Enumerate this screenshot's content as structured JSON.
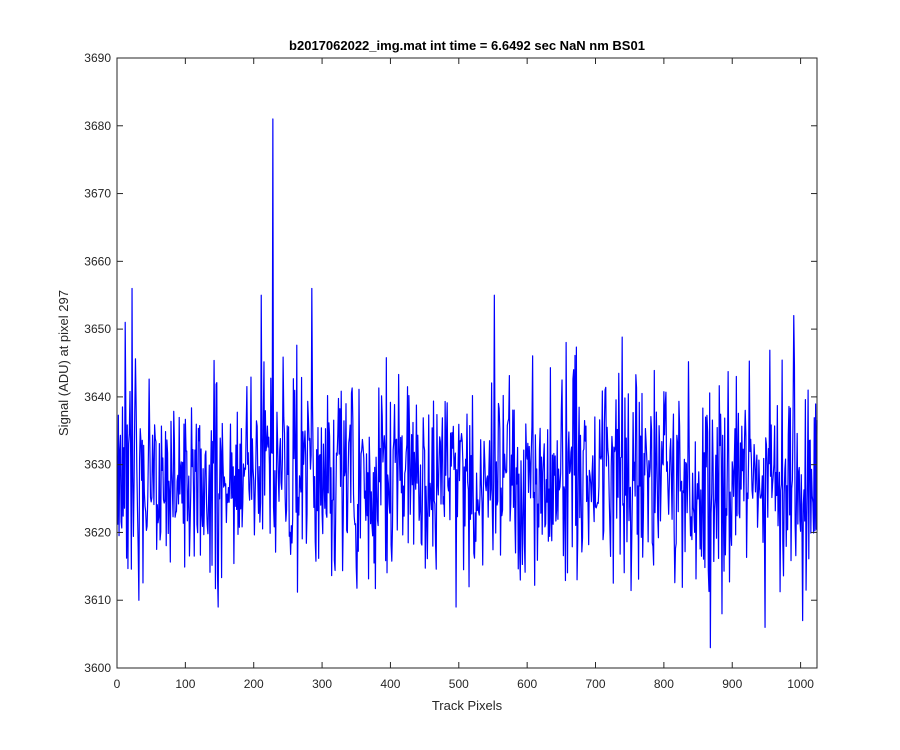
{
  "chart_data": {
    "type": "line",
    "title": "b2017062022_img.mat int time = 6.6492 sec  NaN nm BS01",
    "xlabel": "Track Pixels",
    "ylabel": "Signal (ADU) at pixel 297",
    "xlim": [
      0,
      1024
    ],
    "ylim": [
      3600,
      3690
    ],
    "x_ticks": [
      0,
      100,
      200,
      300,
      400,
      500,
      600,
      700,
      800,
      900,
      1000
    ],
    "y_ticks": [
      3600,
      3610,
      3620,
      3630,
      3640,
      3650,
      3660,
      3670,
      3680,
      3690
    ],
    "grid": false,
    "box": true,
    "series": [
      {
        "color": "#0000ff",
        "x_start": 1,
        "x_step": 1,
        "count": 1024,
        "baseline": 3628,
        "noise_std": 7.5,
        "features": [
          {
            "x": 228,
            "y": 3681
          },
          {
            "x": 22,
            "y": 3656
          },
          {
            "x": 12,
            "y": 3651
          },
          {
            "x": 285,
            "y": 3656
          },
          {
            "x": 552,
            "y": 3655
          },
          {
            "x": 211,
            "y": 3655
          },
          {
            "x": 32,
            "y": 3610
          },
          {
            "x": 148,
            "y": 3609
          },
          {
            "x": 496,
            "y": 3609
          },
          {
            "x": 868,
            "y": 3603
          },
          {
            "x": 885,
            "y": 3608
          },
          {
            "x": 948,
            "y": 3606
          },
          {
            "x": 1003,
            "y": 3607
          },
          {
            "x": 990,
            "y": 3652
          }
        ]
      }
    ]
  }
}
